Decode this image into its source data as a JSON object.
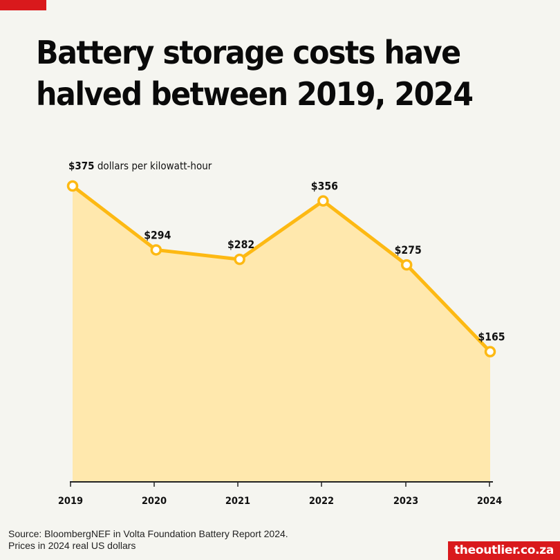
{
  "header": {
    "title": "Battery storage costs have halved between 2019, 2024"
  },
  "chart_data": {
    "type": "area",
    "title": "Battery storage costs have halved between 2019, 2024",
    "categories": [
      "2019",
      "2020",
      "2021",
      "2022",
      "2023",
      "2024"
    ],
    "values": [
      375,
      294,
      282,
      356,
      275,
      165
    ],
    "data_labels": [
      "$375",
      "$294",
      "$282",
      "$356",
      "$275",
      "$165"
    ],
    "unit_label": {
      "value": "$375",
      "text": " dollars per kilowatt-hour"
    },
    "xlabel": "",
    "ylabel": "",
    "ylim": [
      0,
      375
    ],
    "grid": false,
    "colors": {
      "line": "#fdb913",
      "fill": "#ffe8ad",
      "marker_fill": "#ffffff",
      "axis": "#222222"
    }
  },
  "footer": {
    "source_line1": "Source: BloombergNEF in Volta Foundation Battery Report 2024.",
    "source_line2": "Prices in 2024 real US dollars",
    "brand": "theoutlier.co.za",
    "brand_color": "#d9191c"
  }
}
